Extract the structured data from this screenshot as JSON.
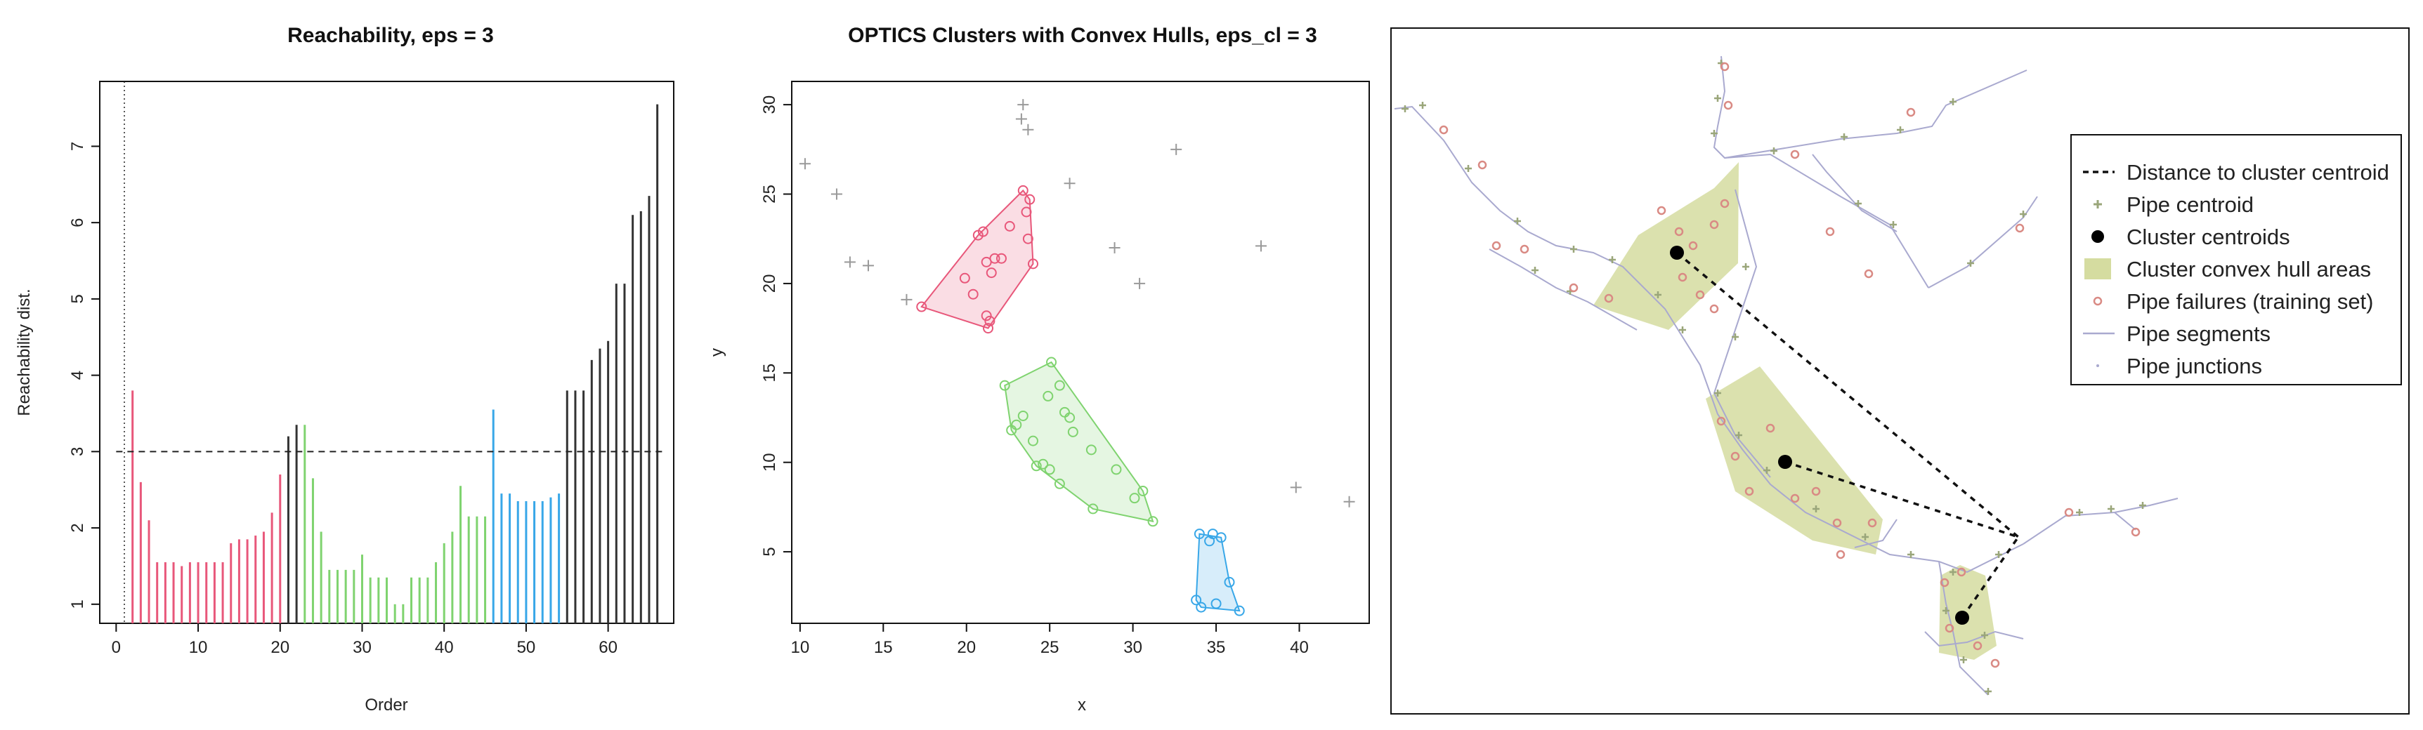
{
  "chart_data": [
    {
      "type": "bar",
      "title": "Reachability, eps = 3",
      "xlabel": "Order",
      "ylabel": "Reachability dist.",
      "xlim": [
        -2,
        68
      ],
      "ylim": [
        0.75,
        7.85
      ],
      "xticks": [
        0,
        10,
        20,
        30,
        40,
        50,
        60
      ],
      "yticks": [
        1,
        2,
        3,
        4,
        5,
        6,
        7
      ],
      "threshold": 3,
      "first_order_marker": 1,
      "colors": {
        "red": "#e8577a",
        "green": "#7fd36f",
        "blue": "#38a7e8",
        "black": "#333333"
      },
      "bars": [
        [
          2,
          3.8,
          "red"
        ],
        [
          3,
          2.6,
          "red"
        ],
        [
          4,
          2.1,
          "red"
        ],
        [
          5,
          1.55,
          "red"
        ],
        [
          6,
          1.55,
          "red"
        ],
        [
          7,
          1.55,
          "red"
        ],
        [
          8,
          1.5,
          "red"
        ],
        [
          9,
          1.55,
          "red"
        ],
        [
          10,
          1.55,
          "red"
        ],
        [
          11,
          1.55,
          "red"
        ],
        [
          12,
          1.55,
          "red"
        ],
        [
          13,
          1.55,
          "red"
        ],
        [
          14,
          1.8,
          "red"
        ],
        [
          15,
          1.85,
          "red"
        ],
        [
          16,
          1.85,
          "red"
        ],
        [
          17,
          1.9,
          "red"
        ],
        [
          18,
          1.95,
          "red"
        ],
        [
          19,
          2.2,
          "red"
        ],
        [
          20,
          2.7,
          "red"
        ],
        [
          21,
          3.2,
          "black"
        ],
        [
          22,
          3.35,
          "black"
        ],
        [
          23,
          3.35,
          "green"
        ],
        [
          24,
          2.65,
          "green"
        ],
        [
          25,
          1.95,
          "green"
        ],
        [
          26,
          1.45,
          "green"
        ],
        [
          27,
          1.45,
          "green"
        ],
        [
          28,
          1.45,
          "green"
        ],
        [
          29,
          1.45,
          "green"
        ],
        [
          30,
          1.65,
          "green"
        ],
        [
          31,
          1.35,
          "green"
        ],
        [
          32,
          1.35,
          "green"
        ],
        [
          33,
          1.35,
          "green"
        ],
        [
          34,
          1.0,
          "green"
        ],
        [
          35,
          1.0,
          "green"
        ],
        [
          36,
          1.35,
          "green"
        ],
        [
          37,
          1.35,
          "green"
        ],
        [
          38,
          1.35,
          "green"
        ],
        [
          39,
          1.55,
          "green"
        ],
        [
          40,
          1.8,
          "green"
        ],
        [
          41,
          1.95,
          "green"
        ],
        [
          42,
          2.55,
          "green"
        ],
        [
          43,
          2.15,
          "green"
        ],
        [
          44,
          2.15,
          "green"
        ],
        [
          45,
          2.15,
          "green"
        ],
        [
          46,
          3.55,
          "blue"
        ],
        [
          47,
          2.45,
          "blue"
        ],
        [
          48,
          2.45,
          "blue"
        ],
        [
          49,
          2.35,
          "blue"
        ],
        [
          50,
          2.35,
          "blue"
        ],
        [
          51,
          2.35,
          "blue"
        ],
        [
          52,
          2.35,
          "blue"
        ],
        [
          53,
          2.4,
          "blue"
        ],
        [
          54,
          2.45,
          "blue"
        ],
        [
          55,
          3.8,
          "black"
        ],
        [
          56,
          3.8,
          "black"
        ],
        [
          57,
          3.8,
          "black"
        ],
        [
          58,
          4.2,
          "black"
        ],
        [
          59,
          4.35,
          "black"
        ],
        [
          60,
          4.45,
          "black"
        ],
        [
          61,
          5.2,
          "black"
        ],
        [
          62,
          5.2,
          "black"
        ],
        [
          63,
          6.1,
          "black"
        ],
        [
          64,
          6.15,
          "black"
        ],
        [
          65,
          6.35,
          "black"
        ],
        [
          66,
          7.55,
          "black"
        ]
      ]
    },
    {
      "type": "scatter",
      "title": "OPTICS Clusters with Convex Hulls, eps_cl = 3",
      "xlabel": "x",
      "ylabel": "y",
      "xlim": [
        9.5,
        44.2
      ],
      "ylim": [
        1.0,
        31.3
      ],
      "xticks": [
        10,
        15,
        20,
        25,
        30,
        35,
        40
      ],
      "yticks": [
        5,
        10,
        15,
        20,
        25,
        30
      ],
      "noise": [
        [
          10.3,
          26.7
        ],
        [
          12.2,
          25.0
        ],
        [
          13.0,
          21.2
        ],
        [
          14.1,
          21.0
        ],
        [
          16.4,
          19.1
        ],
        [
          23.3,
          29.2
        ],
        [
          23.4,
          30.0
        ],
        [
          23.7,
          28.6
        ],
        [
          26.2,
          25.6
        ],
        [
          28.9,
          22.0
        ],
        [
          30.4,
          20.0
        ],
        [
          32.6,
          27.5
        ],
        [
          37.7,
          22.1
        ],
        [
          39.8,
          8.6
        ],
        [
          43.0,
          7.8
        ]
      ],
      "clusters": [
        {
          "color": "#e8577a",
          "points": [
            [
              17.3,
              18.7
            ],
            [
              19.9,
              20.3
            ],
            [
              20.4,
              19.4
            ],
            [
              20.7,
              22.7
            ],
            [
              21.0,
              22.9
            ],
            [
              21.2,
              21.2
            ],
            [
              21.2,
              18.2
            ],
            [
              21.3,
              17.5
            ],
            [
              21.4,
              17.9
            ],
            [
              21.5,
              20.6
            ],
            [
              21.7,
              21.4
            ],
            [
              22.1,
              21.4
            ],
            [
              22.6,
              23.2
            ],
            [
              23.4,
              25.2
            ],
            [
              23.6,
              24.0
            ],
            [
              23.7,
              22.5
            ],
            [
              23.8,
              24.7
            ],
            [
              24.0,
              21.1
            ]
          ],
          "hull": [
            [
              17.3,
              18.7
            ],
            [
              21.3,
              17.5
            ],
            [
              24.0,
              21.1
            ],
            [
              23.8,
              24.7
            ],
            [
              23.4,
              25.2
            ],
            [
              20.7,
              22.7
            ]
          ]
        },
        {
          "color": "#7fd36f",
          "points": [
            [
              22.3,
              14.3
            ],
            [
              22.7,
              11.8
            ],
            [
              23.0,
              12.1
            ],
            [
              23.4,
              12.6
            ],
            [
              24.0,
              11.2
            ],
            [
              24.2,
              9.8
            ],
            [
              24.6,
              9.9
            ],
            [
              24.9,
              13.7
            ],
            [
              25.0,
              9.6
            ],
            [
              25.1,
              15.6
            ],
            [
              25.6,
              14.3
            ],
            [
              25.6,
              8.8
            ],
            [
              25.9,
              12.8
            ],
            [
              26.2,
              12.5
            ],
            [
              26.4,
              11.7
            ],
            [
              27.5,
              10.7
            ],
            [
              27.6,
              7.4
            ],
            [
              29.0,
              9.6
            ],
            [
              30.1,
              8.0
            ],
            [
              30.6,
              8.4
            ],
            [
              31.2,
              6.7
            ]
          ],
          "hull": [
            [
              22.3,
              14.3
            ],
            [
              25.1,
              15.6
            ],
            [
              30.6,
              8.4
            ],
            [
              31.2,
              6.7
            ],
            [
              27.6,
              7.4
            ],
            [
              24.2,
              9.8
            ],
            [
              22.7,
              11.8
            ]
          ]
        },
        {
          "color": "#38a7e8",
          "points": [
            [
              33.8,
              2.3
            ],
            [
              34.1,
              1.9
            ],
            [
              34.0,
              6.0
            ],
            [
              34.6,
              5.6
            ],
            [
              34.8,
              6.0
            ],
            [
              35.0,
              2.1
            ],
            [
              35.3,
              5.8
            ],
            [
              35.8,
              3.3
            ],
            [
              36.4,
              1.7
            ]
          ],
          "hull": [
            [
              33.8,
              2.3
            ],
            [
              34.1,
              1.9
            ],
            [
              36.4,
              1.7
            ],
            [
              35.8,
              3.3
            ],
            [
              35.3,
              5.8
            ],
            [
              34.0,
              6.0
            ]
          ]
        }
      ]
    },
    {
      "type": "scatter",
      "legend_position": "right",
      "legend": [
        "Distance to cluster centroid",
        "Pipe centroid",
        "Cluster centroids",
        "Cluster convex hull areas",
        "Pipe failures (training set)",
        "Pipe segments",
        "Pipe junctions"
      ],
      "colors": {
        "hull": "#d5dca0",
        "failure": "#d98a84",
        "segment": "#a9a9cf",
        "centroid": "#9aa67a"
      }
    }
  ]
}
